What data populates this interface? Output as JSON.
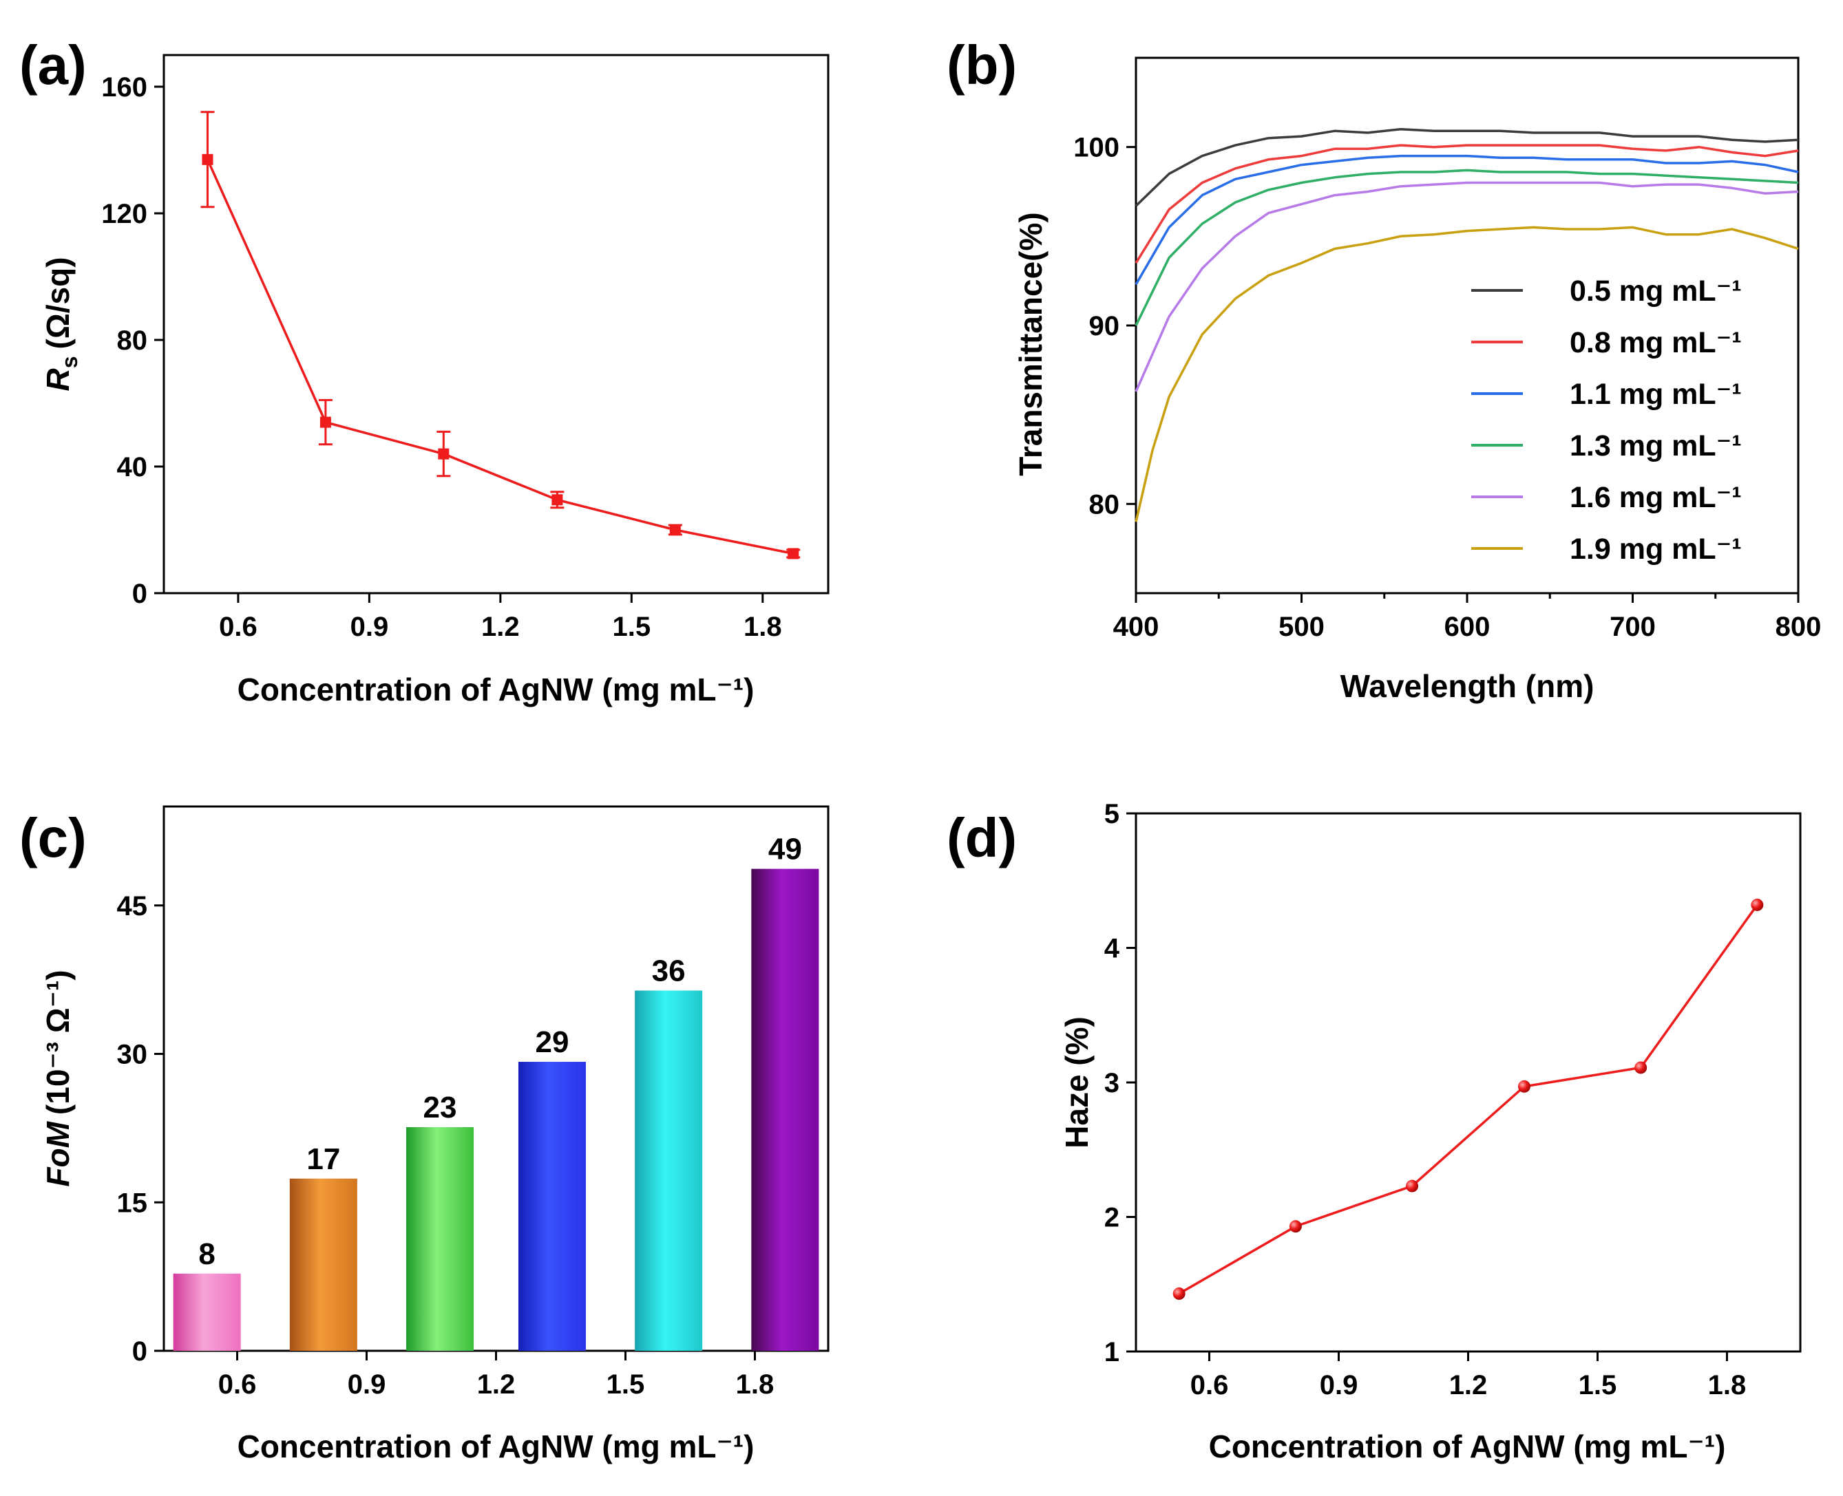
{
  "colors": {
    "red": "#ee1c1c",
    "series_b": [
      "#3c3c3c",
      "#ee3b3b",
      "#2a6de8",
      "#2fae65",
      "#b77be8",
      "#c9a010"
    ],
    "bars": [
      {
        "top": "#f070c0",
        "mid": "#f7a4d8",
        "bot": "#d23c9b"
      },
      {
        "top": "#d5761e",
        "mid": "#f39a3a",
        "bot": "#a85214"
      },
      {
        "top": "#3cbf3c",
        "mid": "#86f07a",
        "bot": "#1f9b2a"
      },
      {
        "top": "#2a34e8",
        "mid": "#3a52ff",
        "bot": "#1520b8"
      },
      {
        "top": "#20c8cc",
        "mid": "#36f4f4",
        "bot": "#18a6b0"
      },
      {
        "top": "#7a0aa0",
        "mid": "#9c18c8",
        "bot": "#46064f"
      }
    ]
  },
  "chart_data": [
    {
      "panel": "(a)",
      "type": "line",
      "xlabel": "Concentration of AgNW (mg mL⁻¹)",
      "ylabel_main": "R",
      "ylabel_sub": "s",
      "ylabel_unit": "(Ω/sq)",
      "xlim": [
        0.43,
        1.95
      ],
      "ylim": [
        0,
        170
      ],
      "xticks": [
        0.6,
        0.9,
        1.2,
        1.5,
        1.8
      ],
      "xtick_labels": [
        "0.6",
        "0.9",
        "1.2",
        "1.5",
        "1.8"
      ],
      "yticks": [
        0,
        40,
        80,
        120,
        160
      ],
      "ytick_labels": [
        "0",
        "40",
        "80",
        "120",
        "160"
      ],
      "x": [
        0.53,
        0.8,
        1.07,
        1.33,
        1.6,
        1.87
      ],
      "y": [
        137,
        54,
        44,
        29.5,
        20,
        12.5
      ],
      "yerr": [
        15,
        7,
        7,
        2.5,
        1.5,
        1.2
      ]
    },
    {
      "panel": "(b)",
      "type": "line",
      "xlabel": "Wavelength (nm)",
      "ylabel": "Transmittance(%)",
      "xlim": [
        400,
        800
      ],
      "ylim": [
        75,
        105
      ],
      "xticks": [
        400,
        500,
        600,
        700,
        800
      ],
      "xtick_labels": [
        "400",
        "500",
        "600",
        "700",
        "800"
      ],
      "yticks": [
        80,
        90,
        100
      ],
      "ytick_labels": [
        "80",
        "90",
        "100"
      ],
      "legend_position": "bottom-right",
      "series": [
        {
          "name": "0.5 mg mL⁻¹",
          "x": [
            400,
            420,
            440,
            460,
            480,
            500,
            520,
            540,
            560,
            580,
            600,
            620,
            640,
            660,
            680,
            700,
            720,
            740,
            760,
            780,
            800
          ],
          "y": [
            96.7,
            98.5,
            99.5,
            100.1,
            100.5,
            100.6,
            100.9,
            100.8,
            101.0,
            100.9,
            100.9,
            100.9,
            100.8,
            100.8,
            100.8,
            100.6,
            100.6,
            100.6,
            100.4,
            100.3,
            100.4
          ]
        },
        {
          "name": "0.8 mg mL⁻¹",
          "x": [
            400,
            420,
            440,
            460,
            480,
            500,
            520,
            540,
            560,
            580,
            600,
            620,
            640,
            660,
            680,
            700,
            720,
            740,
            760,
            780,
            800
          ],
          "y": [
            93.5,
            96.5,
            98.0,
            98.8,
            99.3,
            99.5,
            99.9,
            99.9,
            100.1,
            100.0,
            100.1,
            100.1,
            100.1,
            100.1,
            100.1,
            99.9,
            99.8,
            100.0,
            99.7,
            99.5,
            99.8
          ]
        },
        {
          "name": "1.1 mg mL⁻¹",
          "x": [
            400,
            420,
            440,
            460,
            480,
            500,
            520,
            540,
            560,
            580,
            600,
            620,
            640,
            660,
            680,
            700,
            720,
            740,
            760,
            780,
            800
          ],
          "y": [
            92.3,
            95.5,
            97.3,
            98.2,
            98.6,
            99.0,
            99.2,
            99.4,
            99.5,
            99.5,
            99.5,
            99.4,
            99.4,
            99.3,
            99.3,
            99.3,
            99.1,
            99.1,
            99.2,
            99.0,
            98.6
          ]
        },
        {
          "name": "1.3 mg mL⁻¹",
          "x": [
            400,
            420,
            440,
            460,
            480,
            500,
            520,
            540,
            560,
            580,
            600,
            620,
            640,
            660,
            680,
            700,
            720,
            740,
            760,
            780,
            800
          ],
          "y": [
            90.0,
            93.8,
            95.7,
            96.9,
            97.6,
            98.0,
            98.3,
            98.5,
            98.6,
            98.6,
            98.7,
            98.6,
            98.6,
            98.6,
            98.5,
            98.5,
            98.4,
            98.3,
            98.2,
            98.1,
            98.0
          ]
        },
        {
          "name": "1.6 mg mL⁻¹",
          "x": [
            400,
            420,
            440,
            460,
            480,
            500,
            520,
            540,
            560,
            580,
            600,
            620,
            640,
            660,
            680,
            700,
            720,
            740,
            760,
            780,
            800
          ],
          "y": [
            86.3,
            90.5,
            93.2,
            95.0,
            96.3,
            96.8,
            97.3,
            97.5,
            97.8,
            97.9,
            98.0,
            98.0,
            98.0,
            98.0,
            98.0,
            97.8,
            97.9,
            97.9,
            97.7,
            97.4,
            97.5
          ]
        },
        {
          "name": "1.9 mg mL⁻¹",
          "x": [
            400,
            410,
            420,
            440,
            460,
            480,
            500,
            520,
            540,
            560,
            580,
            600,
            620,
            640,
            660,
            680,
            700,
            720,
            740,
            760,
            780,
            800
          ],
          "y": [
            79.0,
            83.0,
            86.0,
            89.5,
            91.5,
            92.8,
            93.5,
            94.3,
            94.6,
            95.0,
            95.1,
            95.3,
            95.4,
            95.5,
            95.4,
            95.4,
            95.5,
            95.1,
            95.1,
            95.4,
            94.9,
            94.3
          ]
        }
      ]
    },
    {
      "panel": "(c)",
      "type": "bar",
      "xlabel": "Concentration of AgNW (mg mL⁻¹)",
      "ylabel_main": "FoM",
      "ylabel_unit": "(10⁻³ Ω⁻¹)",
      "xlim": [
        0.43,
        1.97
      ],
      "ylim": [
        0,
        55
      ],
      "xticks": [
        0.6,
        0.9,
        1.2,
        1.5,
        1.8
      ],
      "xtick_labels": [
        "0.6",
        "0.9",
        "1.2",
        "1.5",
        "1.8"
      ],
      "yticks": [
        0,
        15,
        30,
        45
      ],
      "ytick_labels": [
        "0",
        "15",
        "30",
        "45"
      ],
      "x": [
        0.53,
        0.8,
        1.07,
        1.33,
        1.6,
        1.87
      ],
      "values": [
        7.8,
        17.4,
        22.6,
        29.2,
        36.4,
        48.7
      ],
      "value_labels": [
        "8",
        "17",
        "23",
        "29",
        "36",
        "49"
      ]
    },
    {
      "panel": "(d)",
      "type": "line",
      "xlabel": "Concentration of AgNW (mg mL⁻¹)",
      "ylabel": "Haze (%)",
      "xlim": [
        0.43,
        1.97
      ],
      "ylim": [
        1,
        5
      ],
      "xticks": [
        0.6,
        0.9,
        1.2,
        1.5,
        1.8
      ],
      "xtick_labels": [
        "0.6",
        "0.9",
        "1.2",
        "1.5",
        "1.8"
      ],
      "yticks": [
        1,
        2,
        3,
        4,
        5
      ],
      "ytick_labels": [
        "1",
        "2",
        "3",
        "4",
        "5"
      ],
      "x": [
        0.53,
        0.8,
        1.07,
        1.33,
        1.6,
        1.87
      ],
      "y": [
        1.43,
        1.93,
        2.23,
        2.97,
        3.11,
        4.32
      ]
    }
  ]
}
